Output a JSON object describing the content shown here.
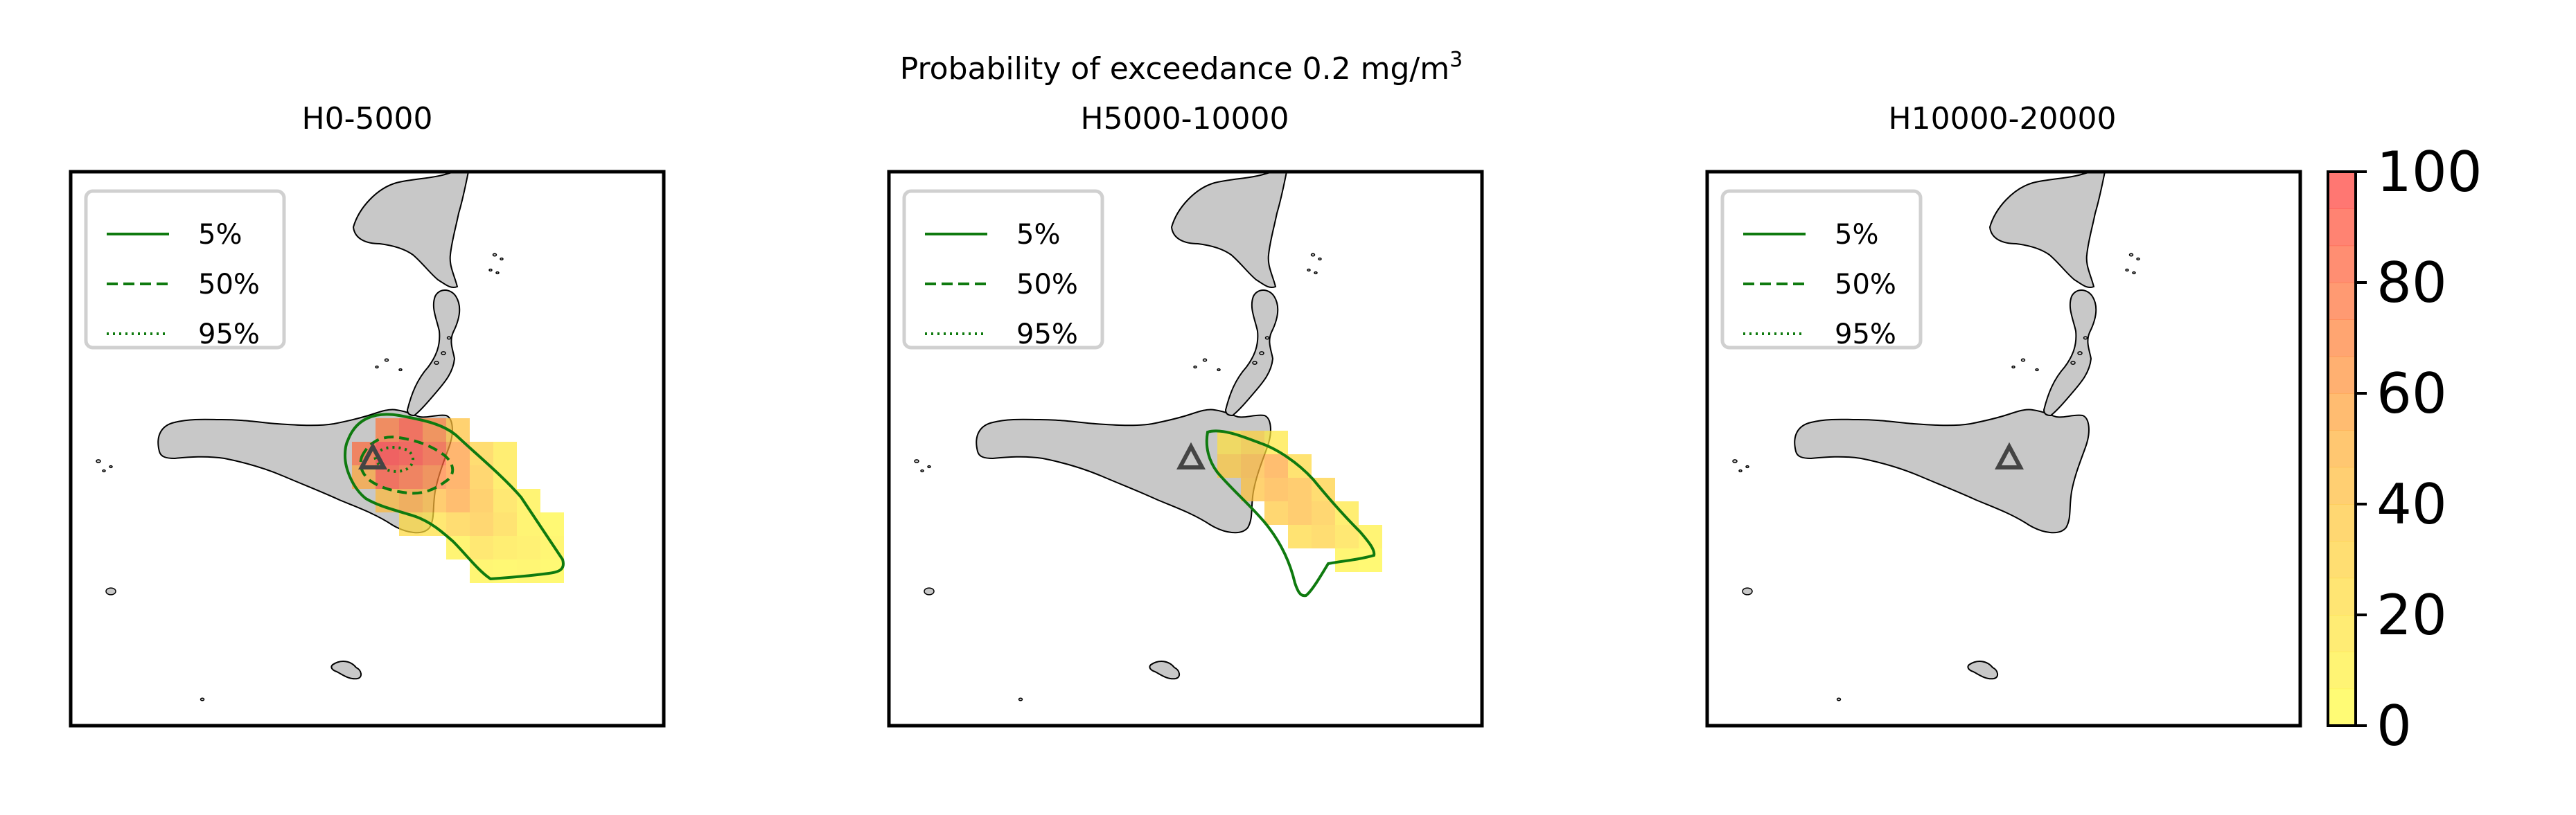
{
  "figure": {
    "suptitle": "Probability of exceedance 0.2 mg/m",
    "suptitle_superscript": "3",
    "panels": [
      {
        "title": "H0-5000",
        "has_plume": true,
        "plume_variant": "low"
      },
      {
        "title": "H5000-10000",
        "has_plume": true,
        "plume_variant": "mid"
      },
      {
        "title": "H10000-20000",
        "has_plume": false
      }
    ],
    "legend": {
      "items": [
        {
          "label": "5%",
          "style": "solid"
        },
        {
          "label": "50%",
          "style": "dashed"
        },
        {
          "label": "95%",
          "style": "dotted"
        }
      ],
      "line_color": "#0f7a0f"
    },
    "colorbar": {
      "min": 0,
      "max": 100,
      "levels": 15,
      "ticks": [
        "100",
        "80",
        "60",
        "40",
        "20",
        "0"
      ],
      "color_low": "#ffff40",
      "color_high": "#ff3b3b"
    },
    "map": {
      "land_color": "#c8c8c8",
      "volcano_marker": "triangle",
      "volcano_color": "#444444"
    }
  }
}
